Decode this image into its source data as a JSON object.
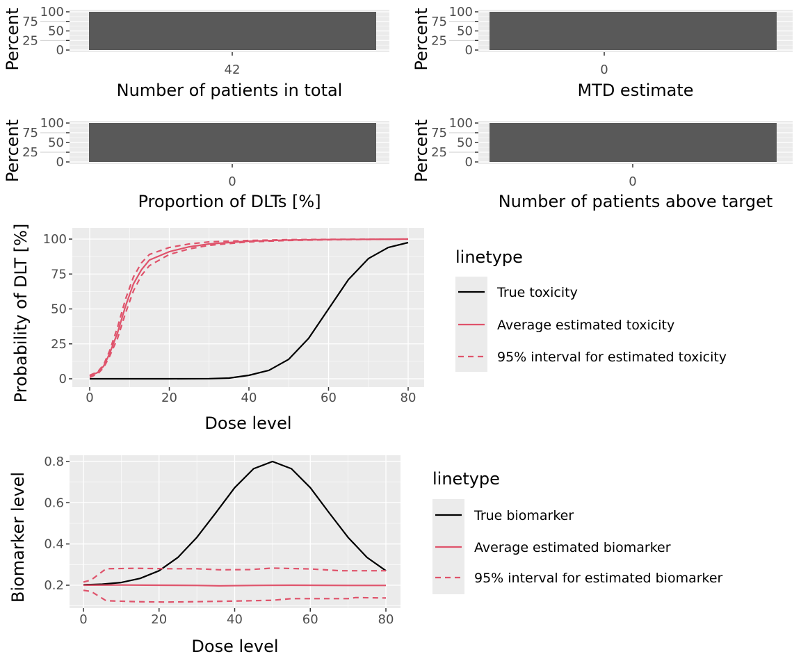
{
  "colors": {
    "panel": "#EBEBEB",
    "grid": "#FFFFFF",
    "bar": "#595959",
    "true": "#000000",
    "estimate": "#DF536B"
  },
  "chart_data": [
    {
      "type": "bar",
      "xlabel": "Number of patients in total",
      "ylabel": "Percent",
      "categories": [
        "42"
      ],
      "values": [
        100
      ],
      "yticks": [
        "0",
        "25",
        "50",
        "75",
        "100"
      ],
      "ylim": [
        0,
        100
      ]
    },
    {
      "type": "bar",
      "xlabel": "MTD estimate",
      "ylabel": "Percent",
      "categories": [
        "0"
      ],
      "values": [
        100
      ],
      "yticks": [
        "0",
        "25",
        "50",
        "75",
        "100"
      ],
      "ylim": [
        0,
        100
      ]
    },
    {
      "type": "bar",
      "xlabel": "Proportion of DLTs [%]",
      "ylabel": "Percent",
      "categories": [
        "0"
      ],
      "values": [
        100
      ],
      "yticks": [
        "0",
        "25",
        "50",
        "75",
        "100"
      ],
      "ylim": [
        0,
        100
      ]
    },
    {
      "type": "bar",
      "xlabel": "Number of patients above target",
      "ylabel": "Percent",
      "categories": [
        "0"
      ],
      "values": [
        100
      ],
      "yticks": [
        "0",
        "25",
        "50",
        "75",
        "100"
      ],
      "ylim": [
        0,
        100
      ]
    },
    {
      "type": "line",
      "xlabel": "Dose level",
      "ylabel": "Probability of DLT [%]",
      "xlim": [
        0,
        80
      ],
      "ylim": [
        0,
        100
      ],
      "xticks": [
        "0",
        "20",
        "40",
        "60",
        "80"
      ],
      "yticks": [
        "0",
        "25",
        "50",
        "75",
        "100"
      ],
      "legend": {
        "title": "linetype",
        "placement": "right"
      },
      "series": [
        {
          "name": "True toxicity",
          "style": "solid",
          "color": "#000000",
          "points": [
            [
              0,
              0
            ],
            [
              10,
              0
            ],
            [
              20,
              0
            ],
            [
              30,
              0.1
            ],
            [
              35,
              0.5
            ],
            [
              40,
              2.5
            ],
            [
              45,
              6
            ],
            [
              50,
              14
            ],
            [
              55,
              29
            ],
            [
              60,
              50
            ],
            [
              65,
              71
            ],
            [
              70,
              86
            ],
            [
              75,
              94
            ],
            [
              80,
              97.5
            ]
          ]
        },
        {
          "name": "Average estimated toxicity",
          "style": "solid",
          "color": "#DF536B",
          "points": [
            [
              0,
              2
            ],
            [
              2,
              4.5
            ],
            [
              3.5,
              9
            ],
            [
              5,
              18
            ],
            [
              7,
              33
            ],
            [
              9,
              52
            ],
            [
              11,
              68
            ],
            [
              13,
              78
            ],
            [
              15,
              85
            ],
            [
              20,
              91
            ],
            [
              25,
              94.5
            ],
            [
              30,
              96.5
            ],
            [
              40,
              98.5
            ],
            [
              50,
              99.3
            ],
            [
              60,
              99.7
            ],
            [
              80,
              100
            ]
          ]
        },
        {
          "name": "95% interval for estimated toxicity",
          "style": "dashed",
          "color": "#DF536B",
          "points": [
            [
              0,
              2.5
            ],
            [
              2,
              5
            ],
            [
              3.5,
              10
            ],
            [
              5,
              20
            ],
            [
              7,
              37
            ],
            [
              9,
              57
            ],
            [
              11,
              73
            ],
            [
              13,
              83
            ],
            [
              15,
              89
            ],
            [
              20,
              94
            ],
            [
              25,
              96.5
            ],
            [
              30,
              98
            ],
            [
              40,
              99
            ],
            [
              50,
              99.6
            ],
            [
              60,
              99.8
            ],
            [
              80,
              100
            ]
          ]
        },
        {
          "name": "",
          "style": "dashed",
          "color": "#DF536B",
          "points": [
            [
              0,
              1
            ],
            [
              2,
              3.5
            ],
            [
              3.5,
              8
            ],
            [
              5,
              16
            ],
            [
              7,
              29
            ],
            [
              9,
              47
            ],
            [
              11,
              63
            ],
            [
              13,
              74
            ],
            [
              15,
              81
            ],
            [
              20,
              89
            ],
            [
              25,
              93
            ],
            [
              30,
              95.5
            ],
            [
              40,
              98
            ],
            [
              50,
              99
            ],
            [
              60,
              99.5
            ],
            [
              80,
              100
            ]
          ]
        }
      ]
    },
    {
      "type": "line",
      "xlabel": "Dose level",
      "ylabel": "Biomarker level",
      "xlim": [
        0,
        80
      ],
      "ylim": [
        0.1,
        0.8
      ],
      "xticks": [
        "0",
        "20",
        "40",
        "60",
        "80"
      ],
      "yticks": [
        "0.2",
        "0.4",
        "0.6",
        "0.8"
      ],
      "legend": {
        "title": "linetype",
        "placement": "right"
      },
      "series": [
        {
          "name": "True biomarker",
          "style": "solid",
          "color": "#000000",
          "points": [
            [
              0,
              0.202
            ],
            [
              5,
              0.205
            ],
            [
              10,
              0.213
            ],
            [
              15,
              0.233
            ],
            [
              20,
              0.27
            ],
            [
              25,
              0.335
            ],
            [
              30,
              0.432
            ],
            [
              35,
              0.551
            ],
            [
              40,
              0.673
            ],
            [
              45,
              0.765
            ],
            [
              50,
              0.8
            ],
            [
              55,
              0.765
            ],
            [
              60,
              0.673
            ],
            [
              65,
              0.551
            ],
            [
              70,
              0.432
            ],
            [
              75,
              0.335
            ],
            [
              80,
              0.27
            ]
          ]
        },
        {
          "name": "Average estimated biomarker",
          "style": "solid",
          "color": "#DF536B",
          "points": [
            [
              0,
              0.2
            ],
            [
              10,
              0.201
            ],
            [
              20,
              0.2
            ],
            [
              30,
              0.199
            ],
            [
              36,
              0.197
            ],
            [
              45,
              0.199
            ],
            [
              55,
              0.2
            ],
            [
              70,
              0.199
            ],
            [
              80,
              0.199
            ]
          ]
        },
        {
          "name": "95% interval for estimated biomarker",
          "style": "dashed",
          "color": "#DF536B",
          "points": [
            [
              0,
              0.215
            ],
            [
              2,
              0.225
            ],
            [
              6,
              0.28
            ],
            [
              14,
              0.282
            ],
            [
              22,
              0.28
            ],
            [
              30,
              0.28
            ],
            [
              36,
              0.275
            ],
            [
              44,
              0.276
            ],
            [
              50,
              0.283
            ],
            [
              60,
              0.279
            ],
            [
              68,
              0.27
            ],
            [
              80,
              0.27
            ]
          ]
        },
        {
          "name": "",
          "style": "dashed",
          "color": "#DF536B",
          "points": [
            [
              0,
              0.175
            ],
            [
              2,
              0.17
            ],
            [
              6,
              0.125
            ],
            [
              14,
              0.12
            ],
            [
              22,
              0.118
            ],
            [
              30,
              0.12
            ],
            [
              40,
              0.123
            ],
            [
              50,
              0.127
            ],
            [
              55,
              0.135
            ],
            [
              70,
              0.135
            ],
            [
              72,
              0.14
            ],
            [
              80,
              0.138
            ]
          ]
        }
      ]
    }
  ]
}
